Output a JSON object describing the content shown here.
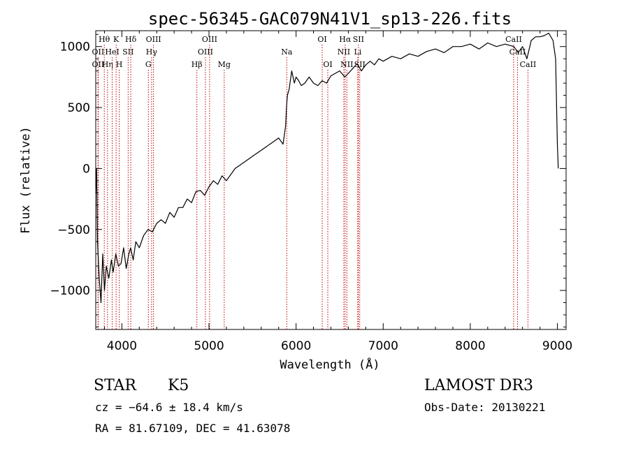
{
  "chart_data": {
    "type": "line",
    "title": "spec-56345-GAC079N41V1_sp13-226.fits",
    "xlabel": "Wavelength (Å)",
    "ylabel": "Flux (relative)",
    "xlim": [
      3700,
      9100
    ],
    "ylim": [
      -1320,
      1130
    ],
    "x_ticks": [
      4000,
      5000,
      6000,
      7000,
      8000,
      9000
    ],
    "y_ticks": [
      -1000,
      -500,
      0,
      500,
      1000
    ],
    "grid": false,
    "series": [
      {
        "name": "spectrum",
        "x": [
          3700,
          3710,
          3720,
          3740,
          3760,
          3780,
          3800,
          3820,
          3850,
          3880,
          3900,
          3930,
          3960,
          3990,
          4020,
          4050,
          4080,
          4100,
          4130,
          4160,
          4200,
          4250,
          4300,
          4350,
          4400,
          4450,
          4500,
          4550,
          4600,
          4650,
          4700,
          4750,
          4800,
          4850,
          4900,
          4950,
          5000,
          5050,
          5100,
          5150,
          5200,
          5300,
          5400,
          5500,
          5600,
          5700,
          5800,
          5850,
          5880,
          5890,
          5900,
          5920,
          5950,
          5980,
          6000,
          6030,
          6060,
          6100,
          6150,
          6200,
          6250,
          6300,
          6350,
          6400,
          6450,
          6500,
          6560,
          6600,
          6650,
          6700,
          6750,
          6800,
          6850,
          6900,
          6950,
          7000,
          7100,
          7200,
          7300,
          7400,
          7500,
          7600,
          7700,
          7800,
          7900,
          8000,
          8100,
          8200,
          8300,
          8400,
          8500,
          8550,
          8600,
          8650,
          8700,
          8750,
          8800,
          8850,
          8900,
          8950,
          8980,
          9000,
          9010
        ],
        "values": [
          -200,
          0,
          -600,
          -900,
          -1100,
          -700,
          -1000,
          -800,
          -900,
          -750,
          -850,
          -700,
          -800,
          -780,
          -650,
          -820,
          -700,
          -650,
          -750,
          -600,
          -650,
          -550,
          -500,
          -520,
          -450,
          -420,
          -450,
          -360,
          -400,
          -320,
          -320,
          -250,
          -280,
          -190,
          -180,
          -220,
          -150,
          -100,
          -130,
          -60,
          -100,
          0,
          50,
          100,
          150,
          200,
          250,
          200,
          350,
          500,
          600,
          650,
          800,
          700,
          750,
          720,
          680,
          700,
          750,
          700,
          680,
          720,
          700,
          760,
          780,
          800,
          750,
          780,
          820,
          860,
          800,
          850,
          880,
          850,
          900,
          880,
          920,
          900,
          940,
          920,
          960,
          980,
          950,
          1000,
          1000,
          1020,
          980,
          1030,
          1000,
          1020,
          1000,
          950,
          1000,
          900,
          1050,
          1080,
          1080,
          1090,
          1110,
          1050,
          900,
          200,
          0
        ]
      }
    ],
    "annotations": [
      {
        "label": "Hθ",
        "wavelength": 3798,
        "row": 0
      },
      {
        "label": "OII",
        "wavelength": 3727,
        "row": 1
      },
      {
        "label": "OII",
        "wavelength": 3727,
        "row": 2
      },
      {
        "label": "Hη",
        "wavelength": 3835,
        "row": 2
      },
      {
        "label": "HeI",
        "wavelength": 3889,
        "row": 1
      },
      {
        "label": "K",
        "wavelength": 3934,
        "row": 0
      },
      {
        "label": "H",
        "wavelength": 3969,
        "row": 2
      },
      {
        "label": "SII",
        "wavelength": 4072,
        "row": 1
      },
      {
        "label": "Hδ",
        "wavelength": 4102,
        "row": 0
      },
      {
        "label": "G",
        "wavelength": 4304,
        "row": 2
      },
      {
        "label": "Hγ",
        "wavelength": 4341,
        "row": 1
      },
      {
        "label": "OIII",
        "wavelength": 4363,
        "row": 0
      },
      {
        "label": "Hβ",
        "wavelength": 4861,
        "row": 2
      },
      {
        "label": "OIII",
        "wavelength": 4959,
        "row": 1
      },
      {
        "label": "OIII",
        "wavelength": 5007,
        "row": 0
      },
      {
        "label": "Mg",
        "wavelength": 5175,
        "row": 2
      },
      {
        "label": "Na",
        "wavelength": 5893,
        "row": 1
      },
      {
        "label": "OI",
        "wavelength": 6300,
        "row": 0
      },
      {
        "label": "OI",
        "wavelength": 6364,
        "row": 2
      },
      {
        "label": "NII",
        "wavelength": 6548,
        "row": 1
      },
      {
        "label": "Hα",
        "wavelength": 6563,
        "row": 0
      },
      {
        "label": "NII",
        "wavelength": 6583,
        "row": 2
      },
      {
        "label": "SII",
        "wavelength": 6716,
        "row": 0
      },
      {
        "label": "Li",
        "wavelength": 6708,
        "row": 1
      },
      {
        "label": "SII",
        "wavelength": 6731,
        "row": 2
      },
      {
        "label": "CaII",
        "wavelength": 8498,
        "row": 0
      },
      {
        "label": "CaII",
        "wavelength": 8542,
        "row": 1
      },
      {
        "label": "CaII",
        "wavelength": 8662,
        "row": 2
      }
    ]
  },
  "info": {
    "object_type": "STAR",
    "subclass": "K5",
    "survey": "LAMOST DR3",
    "redshift": "cz = −64.6 ± 18.4 km/s",
    "obs_date": "Obs-Date: 20130221",
    "coords": "RA =  81.67109, DEC =  41.63078"
  },
  "colors": {
    "spectrum": "#000000",
    "line_marker": "#c00000",
    "background": "#ffffff"
  }
}
